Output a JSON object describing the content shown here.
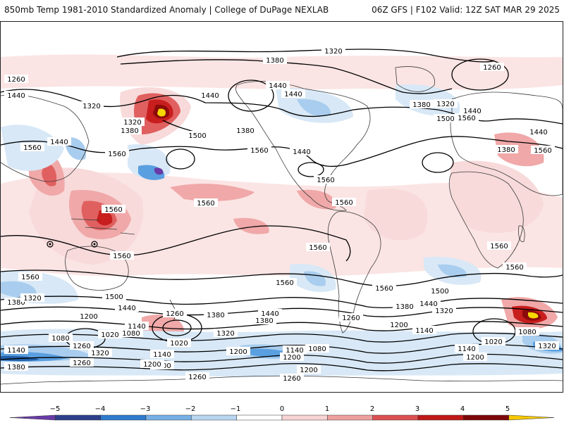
{
  "header": {
    "title_left": "850mb Temp 1981-2010 Standardized Anomaly | College of DuPage NEXLAB",
    "title_right": "06Z GFS | F102 Valid: 12Z SAT MAR 29 2025"
  },
  "map": {
    "contour_labels": [
      "1320",
      "1380",
      "1260",
      "1440",
      "1500",
      "1560",
      "1200",
      "1140",
      "1080",
      "1020"
    ],
    "colors": {
      "warm_1": "#f8dada",
      "warm_2": "#f0a8a8",
      "warm_3": "#e06060",
      "warm_4": "#c81e1e",
      "warm_5": "#8c0a0a",
      "warm_extreme": "#f5d800",
      "cool_1": "#d8e8f6",
      "cool_2": "#a9cdee",
      "cool_3": "#5a9fe0",
      "cool_4": "#2360a8",
      "cool_5": "#6a3aa8",
      "contour": "#000000",
      "coast": "#333333"
    }
  },
  "colorbar": {
    "ticks": [
      "−5",
      "−4",
      "−3",
      "−2",
      "−1",
      "0",
      "1",
      "2",
      "3",
      "4",
      "5"
    ],
    "colors": [
      "#6a3aa8",
      "#2d3f8a",
      "#2e7bcf",
      "#76b0e6",
      "#b8d6f0",
      "#ffffff",
      "#f7d3d3",
      "#eea0a0",
      "#dd5050",
      "#c01818",
      "#7e0808",
      "#f5c800"
    ]
  }
}
